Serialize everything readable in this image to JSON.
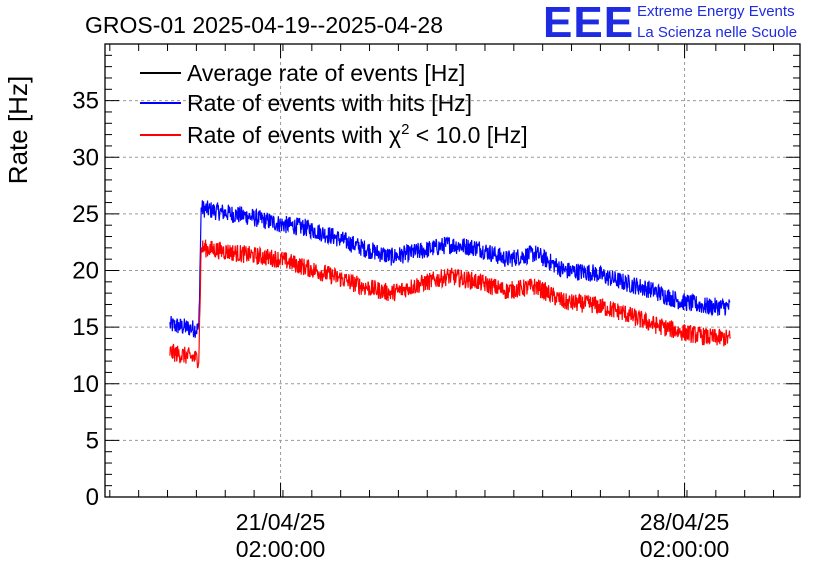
{
  "chart_data": {
    "type": "line",
    "title": "GROS-01 2025-04-19--2025-04-28",
    "ylabel": "Rate [Hz]",
    "xlabel": "",
    "ylim": [
      0,
      40
    ],
    "y_ticks": [
      0,
      5,
      10,
      15,
      20,
      25,
      30,
      35
    ],
    "y_tick_labels": [
      "0",
      "5",
      "10",
      "15",
      "20",
      "25",
      "30",
      "35"
    ],
    "x_ticks": [
      {
        "x": "2025-04-21 02:00:00",
        "label_date": "21/04/25",
        "label_time": "02:00:00"
      },
      {
        "x": "2025-04-28 02:00:00",
        "label_date": "28/04/25",
        "label_time": "02:00:00"
      }
    ],
    "xlim": [
      "2025-04-18 01:00",
      "2025-04-30 02:00"
    ],
    "grid": true,
    "legend_position": "top-left",
    "series": [
      {
        "name": "Average rate of events [Hz]",
        "color": "#000000",
        "x": [],
        "values": []
      },
      {
        "name": "Rate of events with hits [Hz]",
        "color": "#0000ff",
        "noise": 0.8,
        "x": [
          "2025-04-19 04:00",
          "2025-04-19 16:00",
          "2025-04-19 17:00",
          "2025-04-20 00:00",
          "2025-04-20 12:00",
          "2025-04-21 02:00",
          "2025-04-21 12:00",
          "2025-04-22 00:00",
          "2025-04-22 12:00",
          "2025-04-23 00:00",
          "2025-04-23 12:00",
          "2025-04-24 00:00",
          "2025-04-24 12:00",
          "2025-04-25 00:00",
          "2025-04-25 12:00",
          "2025-04-26 00:00",
          "2025-04-26 12:00",
          "2025-04-27 00:00",
          "2025-04-27 12:00",
          "2025-04-28 00:00",
          "2025-04-28 12:00",
          "2025-04-28 21:00"
        ],
        "values": [
          15.2,
          14.8,
          25.5,
          25.2,
          24.8,
          24.1,
          23.8,
          23.0,
          22.0,
          21.2,
          21.7,
          22.3,
          22.0,
          21.0,
          21.5,
          20.0,
          19.8,
          19.0,
          18.3,
          17.3,
          16.8,
          16.8
        ]
      },
      {
        "name": "Rate of events with χ² < 10.0 [Hz]",
        "color": "#ff0000",
        "noise": 0.8,
        "x": [
          "2025-04-19 04:00",
          "2025-04-19 16:00",
          "2025-04-19 17:00",
          "2025-04-20 00:00",
          "2025-04-20 12:00",
          "2025-04-21 02:00",
          "2025-04-21 12:00",
          "2025-04-22 00:00",
          "2025-04-22 12:00",
          "2025-04-23 00:00",
          "2025-04-23 12:00",
          "2025-04-24 00:00",
          "2025-04-24 12:00",
          "2025-04-25 00:00",
          "2025-04-25 12:00",
          "2025-04-26 00:00",
          "2025-04-26 12:00",
          "2025-04-27 00:00",
          "2025-04-27 12:00",
          "2025-04-28 00:00",
          "2025-04-28 12:00",
          "2025-04-28 21:00"
        ],
        "values": [
          12.8,
          12.2,
          22.0,
          21.8,
          21.4,
          21.0,
          20.3,
          19.5,
          18.6,
          18.0,
          18.8,
          19.5,
          19.0,
          18.2,
          18.6,
          17.2,
          17.0,
          16.3,
          15.3,
          14.6,
          14.1,
          14.0
        ]
      }
    ]
  },
  "legend": {
    "items": [
      {
        "label": "Average rate of events [Hz]",
        "color": "#000000"
      },
      {
        "label": "Rate of events with hits [Hz]",
        "color": "#0000ff"
      },
      {
        "label_prefix": "Rate of events with ",
        "label_chi": "χ",
        "label_sup": "2",
        "label_suffix": " < 10.0 [Hz]",
        "color": "#ff0000"
      }
    ]
  },
  "logo": {
    "mark": "EEE",
    "line1": "Extreme Energy Events",
    "line2": "La Scienza nelle Scuole",
    "color": "#1f2be0"
  }
}
